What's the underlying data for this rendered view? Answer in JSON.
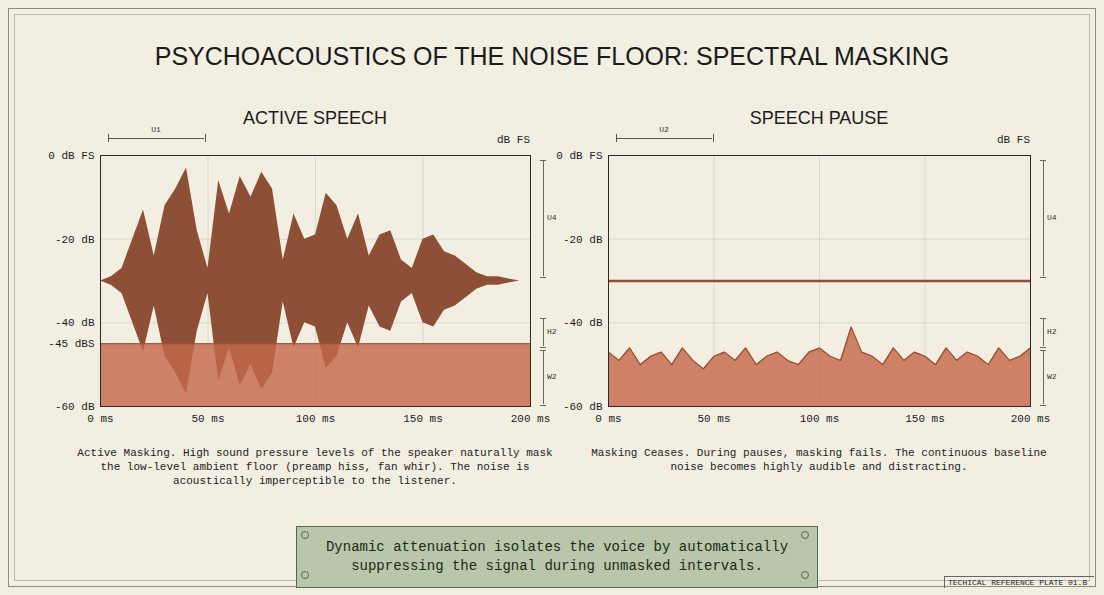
{
  "title": "PSYCHOACOUSTICS OF THE NOISE FLOOR: SPECTRAL MASKING",
  "callout": "Dynamic attenuation isolates the voice by automatically suppressing the signal during unmasked intervals.",
  "footer": "TECHICAL REFERENCE PLATE 01.B",
  "chart_data": [
    {
      "type": "area",
      "title": "ACTIVE SPEECH",
      "caption": "Active Masking. High sound pressure levels of the speaker naturally mask the low-level ambient floor (preamp hiss, fan whir). The noise is acoustically imperceptible to the listener.",
      "unit_label": "dB FS",
      "dimension_labels": {
        "top": "U1",
        "right": [
          "U4",
          "H2",
          "W2"
        ]
      },
      "xlim": [
        0,
        200
      ],
      "xticks": [
        {
          "value": 0,
          "label": "0 ms"
        },
        {
          "value": 50,
          "label": "50 ms"
        },
        {
          "value": 100,
          "label": "100 ms"
        },
        {
          "value": 150,
          "label": "150 ms"
        },
        {
          "value": 200,
          "label": "200 ms"
        }
      ],
      "ylim": [
        -60,
        0
      ],
      "yticks": [
        {
          "value": 0,
          "label": "0 dB FS"
        },
        {
          "value": -20,
          "label": "-20 dB"
        },
        {
          "value": -40,
          "label": "-40 dB"
        },
        {
          "value": -45,
          "label": "-45 dBS"
        },
        {
          "value": -60,
          "label": "-60 dB"
        }
      ],
      "grid": true,
      "series": [
        {
          "type": "area",
          "color": "#8d4f35",
          "x": [
            0,
            5,
            10,
            15,
            20,
            25,
            30,
            35,
            40,
            45,
            50,
            55,
            60,
            65,
            70,
            75,
            80,
            85,
            90,
            95,
            100,
            105,
            110,
            115,
            120,
            125,
            130,
            135,
            140,
            145,
            150,
            155,
            160,
            165,
            170,
            175,
            180,
            185,
            190,
            195,
            200
          ],
          "values": [
            -30,
            -29,
            -27,
            -20,
            -13,
            -24,
            -12,
            -8,
            -3,
            -18,
            -27,
            -6,
            -14,
            -5,
            -10,
            -4,
            -8,
            -25,
            -14,
            -20,
            -19,
            -9,
            -12,
            -20,
            -14,
            -24,
            -19,
            -18,
            -25,
            -27,
            -20,
            -19,
            -23,
            -24,
            -26,
            -28,
            -29,
            -29,
            -29.5,
            -30,
            -30
          ],
          "low": [
            -30,
            -31,
            -33,
            -40,
            -47,
            -36,
            -48,
            -52,
            -57,
            -42,
            -33,
            -54,
            -46,
            -55,
            -50,
            -56,
            -52,
            -35,
            -46,
            -40,
            -41,
            -51,
            -48,
            -40,
            -46,
            -36,
            -41,
            -42,
            -35,
            -33,
            -40,
            -41,
            -37,
            -36,
            -34,
            -32,
            -31,
            -31,
            -30.5,
            -30,
            -30
          ]
        },
        {
          "type": "area",
          "color": "#c4694c",
          "x": [
            0,
            200
          ],
          "values": [
            -45,
            -45
          ],
          "base": -60
        }
      ]
    },
    {
      "type": "area",
      "title": "SPEECH PAUSE",
      "caption": "Masking Ceases. During pauses, masking fails. The continuous baseline noise becomes highly audible and distracting.",
      "unit_label": "dB FS",
      "dimension_labels": {
        "top": "U2",
        "right": [
          "U4",
          "H2",
          "W2"
        ]
      },
      "xlim": [
        0,
        200
      ],
      "xticks": [
        {
          "value": 0,
          "label": "0 ms"
        },
        {
          "value": 50,
          "label": "50 ms"
        },
        {
          "value": 100,
          "label": "100 ms"
        },
        {
          "value": 150,
          "label": "150 ms"
        },
        {
          "value": 200,
          "label": "200 ms"
        }
      ],
      "ylim": [
        -60,
        0
      ],
      "yticks": [
        {
          "value": 0,
          "label": "0 dB FS"
        },
        {
          "value": -20,
          "label": "-20 dB"
        },
        {
          "value": -40,
          "label": "-40 dB"
        },
        {
          "value": -60,
          "label": "-60 dB"
        }
      ],
      "grid": true,
      "series": [
        {
          "type": "line",
          "color": "#8d4f35",
          "x": [
            0,
            200
          ],
          "values": [
            -30,
            -30
          ]
        },
        {
          "type": "area",
          "color": "#c4694c",
          "x": [
            0,
            5,
            10,
            15,
            20,
            25,
            30,
            35,
            40,
            45,
            50,
            55,
            60,
            65,
            70,
            75,
            80,
            85,
            90,
            95,
            100,
            105,
            110,
            115,
            120,
            125,
            130,
            135,
            140,
            145,
            150,
            155,
            160,
            165,
            170,
            175,
            180,
            185,
            190,
            195,
            200
          ],
          "values": [
            -47,
            -49,
            -46,
            -50,
            -48,
            -47,
            -50,
            -46,
            -49,
            -51,
            -48,
            -47,
            -49,
            -46,
            -50,
            -48,
            -47,
            -49,
            -50,
            -47,
            -46,
            -48,
            -49,
            -41,
            -47,
            -48,
            -50,
            -46,
            -49,
            -47,
            -48,
            -50,
            -46,
            -49,
            -47,
            -48,
            -50,
            -46,
            -49,
            -48,
            -46
          ],
          "base": -60
        }
      ]
    }
  ]
}
